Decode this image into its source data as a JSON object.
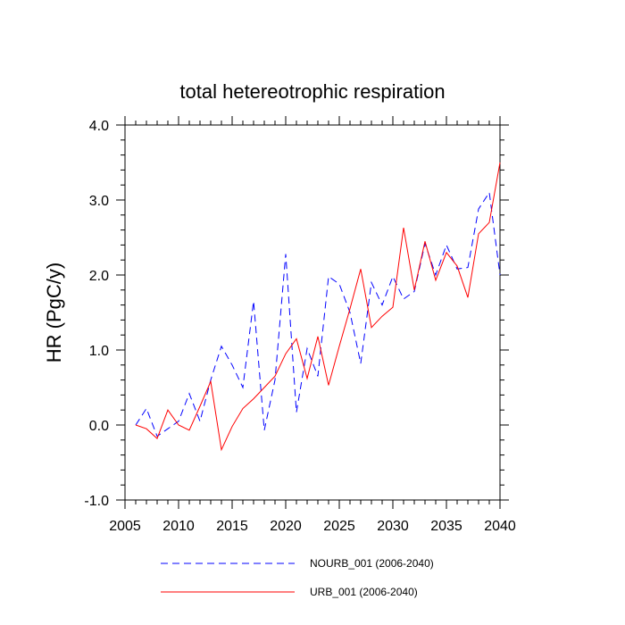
{
  "chart_data": {
    "type": "line",
    "title": "total hetereotrophic respiration",
    "xlabel": "",
    "ylabel": "HR  (PgC/y)",
    "xlim": [
      2005,
      2040
    ],
    "ylim": [
      -1.0,
      4.0
    ],
    "x_ticks": [
      2005,
      2010,
      2015,
      2020,
      2025,
      2030,
      2035,
      2040
    ],
    "x_tick_labels": [
      "2005",
      "2010",
      "2015",
      "2020",
      "2025",
      "2030",
      "2035",
      "2040"
    ],
    "y_ticks": [
      -1.0,
      0.0,
      1.0,
      2.0,
      3.0,
      4.0
    ],
    "y_tick_labels": [
      "-1.0",
      "0.0",
      "1.0",
      "2.0",
      "3.0",
      "4.0"
    ],
    "grid": false,
    "legend_position": "bottom",
    "x": [
      2006,
      2007,
      2008,
      2009,
      2010,
      2011,
      2012,
      2013,
      2014,
      2015,
      2016,
      2017,
      2018,
      2019,
      2020,
      2021,
      2022,
      2023,
      2024,
      2025,
      2026,
      2027,
      2028,
      2029,
      2030,
      2031,
      2032,
      2033,
      2034,
      2035,
      2036,
      2037,
      2038,
      2039,
      2040
    ],
    "series": [
      {
        "name": "NOURB_001 (2006-2040)",
        "color": "#0000ff",
        "style": "dashed",
        "values": [
          0.0,
          0.22,
          -0.15,
          -0.05,
          0.05,
          0.42,
          0.05,
          0.6,
          1.05,
          0.8,
          0.5,
          1.65,
          -0.07,
          0.6,
          2.28,
          0.17,
          1.02,
          0.65,
          1.98,
          1.88,
          1.5,
          0.82,
          1.9,
          1.6,
          1.98,
          1.68,
          1.78,
          2.42,
          2.0,
          2.4,
          2.08,
          2.1,
          2.88,
          3.1,
          2.0
        ]
      },
      {
        "name": "URB_001 (2006-2040)",
        "color": "#ff0000",
        "style": "solid",
        "values": [
          0.0,
          -0.05,
          -0.18,
          0.2,
          0.0,
          -0.07,
          0.25,
          0.58,
          -0.33,
          -0.02,
          0.22,
          0.35,
          0.5,
          0.65,
          0.95,
          1.15,
          0.62,
          1.18,
          0.53,
          1.05,
          1.55,
          2.08,
          1.3,
          1.45,
          1.57,
          2.63,
          1.8,
          2.45,
          1.93,
          2.3,
          2.12,
          1.7,
          2.55,
          2.7,
          3.5
        ]
      }
    ]
  }
}
